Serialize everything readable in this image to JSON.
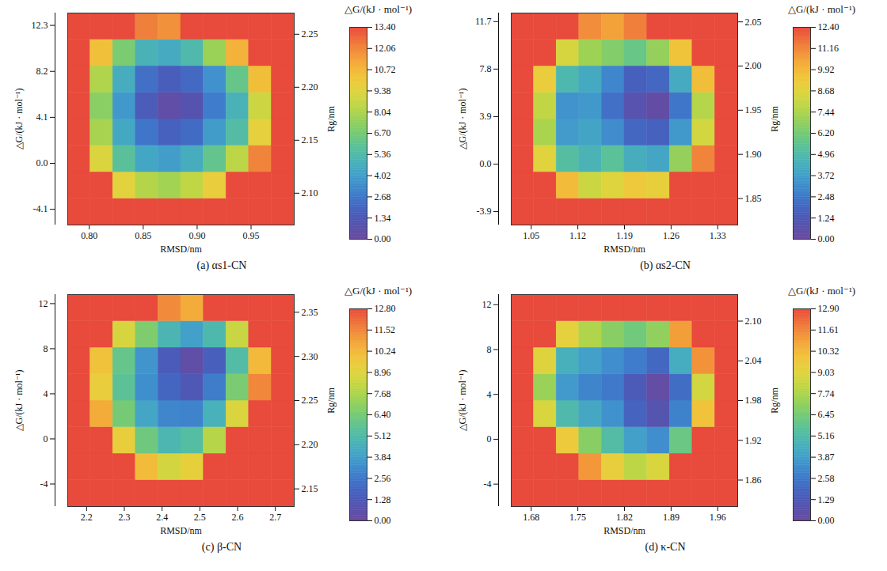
{
  "chart_data": [
    {
      "type": "heatmap",
      "label": "(a)",
      "title": "αs1-CN",
      "xlabel": "RMSD/nm",
      "ylabel": "Rg/nm",
      "zlabel": "△G/(kJ · mol⁻¹)",
      "xlim": [
        0.78,
        0.99
      ],
      "xticks": [
        {
          "value": 0.8,
          "label": "0.80"
        },
        0.85,
        {
          "value": 0.9,
          "label": "0.90"
        },
        0.95
      ],
      "ylim": [
        2.07,
        2.27
      ],
      "yticks": [
        {
          "value": 2.1,
          "label": "2.10"
        },
        2.15,
        {
          "value": 2.2,
          "label": "2.20"
        },
        2.25
      ],
      "zlim": [
        -5.5,
        13.4
      ],
      "zticks": [
        12.3,
        8.2,
        4.1,
        {
          "value": 0,
          "label": "0.0"
        },
        -4.1
      ],
      "x_bins": [
        0.78,
        0.801,
        0.822,
        0.843,
        0.864,
        0.885,
        0.906,
        0.927,
        0.948,
        0.969,
        0.99
      ],
      "y_bins": [
        2.07,
        2.095,
        2.12,
        2.145,
        2.17,
        2.195,
        2.22,
        2.245,
        2.27
      ],
      "values": [
        [
          13.4,
          13.4,
          13.4,
          13.4,
          13.4,
          13.4,
          13.4,
          13.4,
          13.4,
          13.4
        ],
        [
          13.4,
          13.4,
          9.5,
          8.2,
          7.8,
          8.5,
          9.8,
          13.4,
          13.4,
          13.4
        ],
        [
          13.4,
          9.2,
          5.8,
          4.3,
          4.0,
          4.6,
          6.1,
          8.4,
          12.1,
          13.4
        ],
        [
          13.4,
          7.9,
          4.4,
          2.6,
          1.8,
          2.2,
          3.9,
          5.5,
          9.6,
          13.4
        ],
        [
          13.4,
          7.2,
          3.8,
          1.5,
          0.4,
          0.9,
          2.8,
          4.9,
          8.8,
          13.4
        ],
        [
          13.4,
          8.1,
          4.6,
          2.4,
          1.6,
          2.1,
          3.5,
          6.2,
          10.5,
          13.4
        ],
        [
          13.4,
          10.4,
          6.8,
          4.9,
          4.5,
          5.3,
          7.6,
          10.9,
          13.4,
          13.4
        ],
        [
          13.4,
          13.4,
          13.4,
          12.2,
          11.8,
          13.4,
          13.4,
          13.4,
          13.4,
          13.4
        ]
      ],
      "colorbar": {
        "label": "△G/(kJ · mol⁻¹)",
        "range": [
          0,
          13.4
        ],
        "ticks": [
          {
            "value": 13.4,
            "label": "13.40"
          },
          12.06,
          10.72,
          9.38,
          8.04,
          {
            "value": 6.7,
            "label": "6.70"
          },
          5.36,
          4.02,
          2.68,
          1.34,
          {
            "value": 0,
            "label": "0.00"
          }
        ]
      }
    },
    {
      "type": "heatmap",
      "label": "(b)",
      "title": "αs2-CN",
      "xlabel": "RMSD/nm",
      "ylabel": "Rg/nm",
      "zlabel": "△G/(kJ · mol⁻¹)",
      "xlim": [
        1.02,
        1.36
      ],
      "xticks": [
        1.05,
        1.12,
        1.19,
        1.26,
        1.33
      ],
      "ylim": [
        1.82,
        2.06
      ],
      "yticks": [
        1.85,
        {
          "value": 1.9,
          "label": "1.90"
        },
        1.95,
        {
          "value": 2,
          "label": "2.00"
        },
        2.05
      ],
      "zlim": [
        -5,
        12.4
      ],
      "zticks": [
        11.7,
        7.8,
        3.9,
        {
          "value": 0,
          "label": "0.0"
        },
        -3.9
      ],
      "x_bins": [
        1.02,
        1.054,
        1.088,
        1.122,
        1.156,
        1.19,
        1.224,
        1.258,
        1.292,
        1.326,
        1.36
      ],
      "y_bins": [
        1.82,
        1.85,
        1.88,
        1.91,
        1.94,
        1.97,
        2.0,
        2.03,
        2.06
      ],
      "values": [
        [
          12.4,
          12.4,
          12.4,
          12.4,
          12.4,
          12.4,
          12.4,
          12.4,
          12.4,
          12.4
        ],
        [
          12.4,
          12.4,
          9.8,
          8.1,
          8.6,
          9.3,
          9.0,
          12.4,
          12.4,
          12.4
        ],
        [
          12.4,
          8.7,
          5.2,
          4.6,
          5.4,
          4.3,
          4.0,
          6.9,
          11.2,
          12.4
        ],
        [
          12.4,
          7.4,
          3.6,
          3.9,
          3.1,
          1.9,
          1.7,
          3.5,
          8.3,
          12.4
        ],
        [
          12.4,
          7.9,
          3.3,
          3.5,
          2.2,
          0.8,
          0.3,
          2.4,
          7.6,
          12.4
        ],
        [
          12.4,
          9.1,
          4.8,
          4.1,
          2.9,
          1.6,
          1.9,
          4.2,
          9.7,
          12.4
        ],
        [
          12.4,
          12.4,
          8.4,
          7.1,
          6.5,
          5.8,
          6.9,
          9.5,
          12.4,
          12.4
        ],
        [
          12.4,
          12.4,
          12.4,
          11.0,
          10.5,
          11.3,
          12.4,
          12.4,
          12.4,
          12.4
        ]
      ],
      "colorbar": {
        "label": "△G/(kJ · mol⁻¹)",
        "range": [
          0,
          12.4
        ],
        "ticks": [
          {
            "value": 12.4,
            "label": "12.40"
          },
          11.16,
          9.92,
          8.68,
          7.44,
          {
            "value": 6.2,
            "label": "6.20"
          },
          4.96,
          3.72,
          2.48,
          1.24,
          {
            "value": 0,
            "label": "0.00"
          }
        ]
      }
    },
    {
      "type": "heatmap",
      "label": "(c)",
      "title": "β-CN",
      "xlabel": "RMSD/nm",
      "ylabel": "Rg/nm",
      "zlabel": "△G/(kJ · mol⁻¹)",
      "xlim": [
        2.15,
        2.75
      ],
      "xticks": [
        2.2,
        2.3,
        2.4,
        2.5,
        2.6,
        2.7
      ],
      "ylim": [
        2.13,
        2.37
      ],
      "yticks": [
        2.15,
        {
          "value": 2.2,
          "label": "2.20"
        },
        2.25,
        {
          "value": 2.3,
          "label": "2.30"
        },
        2.35
      ],
      "zlim": [
        -6,
        12.8
      ],
      "zticks": [
        12,
        8,
        4,
        0,
        -4
      ],
      "x_bins": [
        2.15,
        2.21,
        2.27,
        2.33,
        2.39,
        2.45,
        2.51,
        2.57,
        2.63,
        2.69,
        2.75
      ],
      "y_bins": [
        2.13,
        2.16,
        2.19,
        2.22,
        2.25,
        2.28,
        2.31,
        2.34,
        2.37
      ],
      "values": [
        [
          12.8,
          12.8,
          12.8,
          12.8,
          12.8,
          12.8,
          12.8,
          12.8,
          12.8,
          12.8
        ],
        [
          12.8,
          12.8,
          12.8,
          10.1,
          8.6,
          9.2,
          12.8,
          12.8,
          12.8,
          12.8
        ],
        [
          12.8,
          12.8,
          9.3,
          6.2,
          4.9,
          5.3,
          7.9,
          12.8,
          12.8,
          12.8
        ],
        [
          12.8,
          10.6,
          6.4,
          4.1,
          3.0,
          2.9,
          4.6,
          8.8,
          12.8,
          12.8
        ],
        [
          12.8,
          9.4,
          5.6,
          3.3,
          1.9,
          1.2,
          2.7,
          6.5,
          11.5,
          12.8
        ],
        [
          12.8,
          9.9,
          5.9,
          3.5,
          1.4,
          0.4,
          1.6,
          5.2,
          10.2,
          12.8
        ],
        [
          12.8,
          12.8,
          8.7,
          6.6,
          4.8,
          3.9,
          5.0,
          8.3,
          12.8,
          12.8
        ],
        [
          12.8,
          12.8,
          12.8,
          12.8,
          11.4,
          10.6,
          12.8,
          12.8,
          12.8,
          12.8
        ]
      ],
      "colorbar": {
        "label": "△G/(kJ · mol⁻¹)",
        "range": [
          0,
          12.8
        ],
        "ticks": [
          {
            "value": 12.8,
            "label": "12.80"
          },
          11.52,
          10.24,
          8.96,
          7.68,
          {
            "value": 6.4,
            "label": "6.40"
          },
          5.12,
          3.84,
          2.56,
          1.28,
          {
            "value": 0,
            "label": "0.00"
          }
        ]
      }
    },
    {
      "type": "heatmap",
      "label": "(d)",
      "title": "κ-CN",
      "xlabel": "RMSD/nm",
      "ylabel": "Rg/nm",
      "zlabel": "△G/(kJ · mol⁻¹)",
      "xlim": [
        1.65,
        1.99
      ],
      "xticks": [
        1.68,
        1.75,
        1.82,
        1.89,
        1.96
      ],
      "ylim": [
        1.82,
        2.14
      ],
      "yticks": [
        1.86,
        1.92,
        1.98,
        2.04,
        {
          "value": 2.1,
          "label": "2.10"
        }
      ],
      "zlim": [
        -6,
        12.9
      ],
      "zticks": [
        12,
        8,
        4,
        0,
        -4
      ],
      "x_bins": [
        1.65,
        1.684,
        1.718,
        1.752,
        1.786,
        1.82,
        1.854,
        1.888,
        1.922,
        1.956,
        1.99
      ],
      "y_bins": [
        1.82,
        1.86,
        1.9,
        1.94,
        1.98,
        2.02,
        2.06,
        2.1,
        2.14
      ],
      "values": [
        [
          12.9,
          12.9,
          12.9,
          12.9,
          12.9,
          12.9,
          12.9,
          12.9,
          12.9,
          12.9
        ],
        [
          12.9,
          12.9,
          12.9,
          11.2,
          9.4,
          8.1,
          8.8,
          12.9,
          12.9,
          12.9
        ],
        [
          12.9,
          12.9,
          9.6,
          6.9,
          5.3,
          3.9,
          3.3,
          6.1,
          12.9,
          12.9
        ],
        [
          12.9,
          8.8,
          5.1,
          4.2,
          3.4,
          1.8,
          0.9,
          2.9,
          9.9,
          12.9
        ],
        [
          12.9,
          7.3,
          3.7,
          3.0,
          2.6,
          1.4,
          0.3,
          2.2,
          8.6,
          12.9
        ],
        [
          12.9,
          9.0,
          4.6,
          3.9,
          3.3,
          2.7,
          2.0,
          4.4,
          11.3,
          12.9
        ],
        [
          12.9,
          12.9,
          9.2,
          7.8,
          6.9,
          6.3,
          7.1,
          11.0,
          12.9,
          12.9
        ],
        [
          12.9,
          12.9,
          12.9,
          12.9,
          12.9,
          12.9,
          12.9,
          12.9,
          12.9,
          12.9
        ]
      ],
      "colorbar": {
        "label": "△G/(kJ · mol⁻¹)",
        "range": [
          0,
          12.9
        ],
        "ticks": [
          {
            "value": 12.9,
            "label": "12.90"
          },
          11.61,
          10.32,
          9.03,
          7.74,
          6.45,
          5.16,
          3.87,
          2.58,
          1.29,
          {
            "value": 0,
            "label": "0.00"
          }
        ]
      }
    }
  ]
}
